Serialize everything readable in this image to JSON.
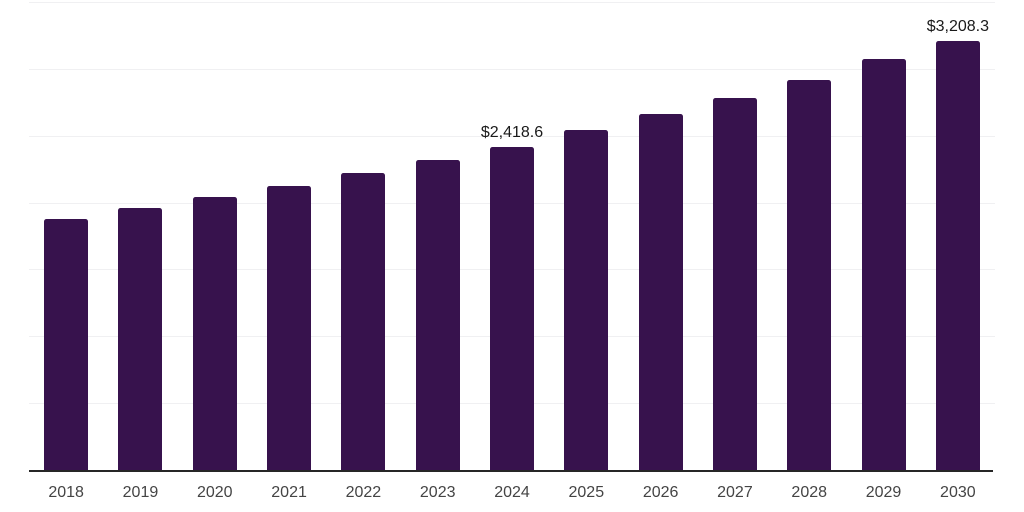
{
  "chart_data": {
    "type": "bar",
    "title": "",
    "xlabel": "",
    "ylabel": "",
    "categories": [
      "2018",
      "2019",
      "2020",
      "2021",
      "2022",
      "2023",
      "2024",
      "2025",
      "2026",
      "2027",
      "2028",
      "2029",
      "2030"
    ],
    "values": [
      1876,
      1963,
      2040,
      2122,
      2220,
      2320,
      2418.6,
      2539,
      2661,
      2781,
      2920,
      3070,
      3208.3
    ],
    "point_labels": [
      "",
      "",
      "",
      "",
      "",
      "",
      "$2,418.6",
      "",
      "",
      "",
      "",
      "",
      "$3,208.3"
    ],
    "ylim": [
      0,
      3500
    ],
    "grid_interval": 500,
    "grid_visible": true,
    "y_tick_labels_visible": false,
    "legend_position": "none",
    "colors": {
      "bar": "#37124D",
      "gridline": "#f0f0f2",
      "axis_line": "#262626",
      "x_tick_label": "#444444",
      "data_label": "#1a1a1a",
      "background": "#ffffff"
    }
  }
}
